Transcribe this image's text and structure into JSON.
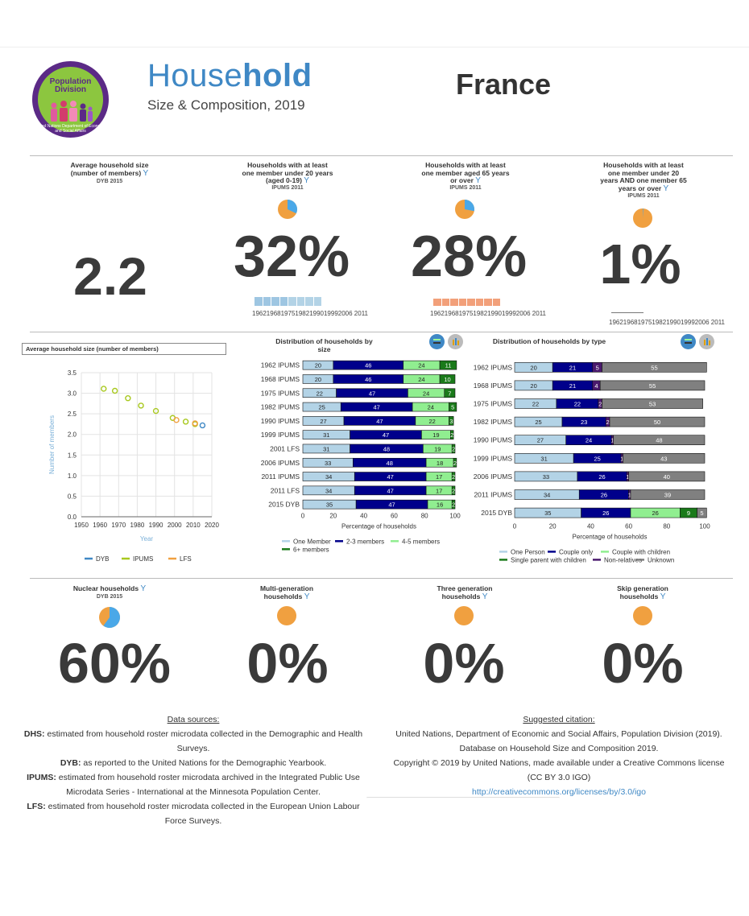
{
  "header": {
    "title_light": "House",
    "title_bold": "hold",
    "subtitle": "Size & Composition, 2019",
    "country": "France",
    "logo": {
      "line1": "Population",
      "line2": "Division",
      "ring_text": "United Nations Department of Economic and Social Affairs"
    }
  },
  "colors": {
    "blue": "#3f88c5",
    "orange": "#f0a040",
    "lightblue": "#b3d3e6",
    "navy": "#00008b",
    "lightgreen": "#90ee90",
    "darkgreen": "#1a7a1a",
    "gray": "#808080",
    "yellow_green": "#a8c81e"
  },
  "kpis": [
    {
      "label": "Average household size (number of members)",
      "source": "DYB 2015",
      "value": "2.2"
    },
    {
      "label": "Households with at least one member under 20 years (aged 0-19)",
      "source": "IPUMS 2011",
      "value": "32%",
      "pie": 0.32,
      "years": "1962196819751982199019992006 2011"
    },
    {
      "label": "Households with at least one member aged 65 years or over",
      "source": "IPUMS 2011",
      "value": "28%",
      "pie": 0.28,
      "years": "1962196819751982199019992006 2011"
    },
    {
      "label": "Households with at least one member under 20 years AND one member 65 years or over",
      "source": "IPUMS 2011",
      "value": "1%",
      "pie": 0.01,
      "years": "1962196819751982199019992006 2011"
    }
  ],
  "kpis2": [
    {
      "label": "Nuclear households",
      "source": "DYB 2015",
      "value": "60%",
      "pie": 0.6
    },
    {
      "label": "Multi-generation households",
      "value": "0%",
      "pie": 0.0
    },
    {
      "label": "Three generation households",
      "value": "0%",
      "pie": 0.0
    },
    {
      "label": "Skip generation households",
      "value": "0%",
      "pie": 0.0
    }
  ],
  "chart_data": [
    {
      "type": "scatter",
      "title": "Average household size (number of members)",
      "xlabel": "Year",
      "ylabel": "Number of members",
      "xlim": [
        1950,
        2020
      ],
      "ylim": [
        0,
        3.5
      ],
      "xticks": [
        "1950",
        "1960",
        "1970",
        "1980",
        "1990",
        "2000",
        "2010",
        "2020"
      ],
      "yticks": [
        "0.0",
        "0.5",
        "1.0",
        "1.5",
        "2.0",
        "2.5",
        "3.0",
        "3.5"
      ],
      "series": [
        {
          "name": "DYB",
          "color": "#3f88c5",
          "points": [
            [
              2015,
              2.22
            ]
          ]
        },
        {
          "name": "IPUMS",
          "color": "#a8c81e",
          "points": [
            [
              1962,
              3.11
            ],
            [
              1968,
              3.06
            ],
            [
              1975,
              2.88
            ],
            [
              1982,
              2.7
            ],
            [
              1990,
              2.57
            ],
            [
              1999,
              2.4
            ],
            [
              2006,
              2.31
            ],
            [
              2011,
              2.25
            ]
          ]
        },
        {
          "name": "LFS",
          "color": "#f0a040",
          "points": [
            [
              2001,
              2.35
            ],
            [
              2011,
              2.27
            ]
          ]
        }
      ]
    },
    {
      "type": "bar",
      "title": "Distribution of households by size",
      "xlabel": "Percentage of households",
      "xticks": [
        "0",
        "20",
        "40",
        "60",
        "80",
        "100"
      ],
      "categories": [
        "1962 IPUMS",
        "1968 IPUMS",
        "1975 IPUMS",
        "1982 IPUMS",
        "1990 IPUMS",
        "1999 IPUMS",
        "2001 LFS",
        "2006 IPUMS",
        "2011 IPUMS",
        "2011 LFS",
        "2015 DYB"
      ],
      "series": [
        {
          "name": "One Member",
          "color": "#b3d3e6",
          "values": [
            20,
            20,
            22,
            25,
            27,
            31,
            31,
            33,
            34,
            34,
            35
          ]
        },
        {
          "name": "2-3 members",
          "color": "#00008b",
          "values": [
            46,
            46,
            47,
            47,
            47,
            47,
            48,
            48,
            47,
            47,
            47
          ]
        },
        {
          "name": "4-5 members",
          "color": "#90ee90",
          "values": [
            24,
            24,
            24,
            24,
            22,
            19,
            19,
            18,
            17,
            17,
            16
          ]
        },
        {
          "name": "6+ members",
          "color": "#1a7a1a",
          "values": [
            11,
            10,
            7,
            5,
            3,
            2,
            2,
            2,
            2,
            2,
            2
          ]
        }
      ]
    },
    {
      "type": "bar",
      "title": "Distribution of households by type",
      "xlabel": "Percentage of households",
      "xticks": [
        "0",
        "20",
        "40",
        "60",
        "80",
        "100"
      ],
      "categories": [
        "1962 IPUMS",
        "1968 IPUMS",
        "1975 IPUMS",
        "1982 IPUMS",
        "1990 IPUMS",
        "1999 IPUMS",
        "2006 IPUMS",
        "2011 IPUMS",
        "2015 DYB"
      ],
      "series": [
        {
          "name": "One Person",
          "color": "#b3d3e6",
          "values": [
            20,
            20,
            22,
            25,
            27,
            31,
            33,
            34,
            35
          ]
        },
        {
          "name": "Couple only",
          "color": "#00008b",
          "values": [
            21,
            21,
            22,
            23,
            24,
            25,
            26,
            26,
            26
          ]
        },
        {
          "name": "Couple with children",
          "color": "#90ee90",
          "values": [
            0,
            0,
            0,
            0,
            0,
            0,
            0,
            0,
            26
          ]
        },
        {
          "name": "Single parent with children",
          "color": "#1a7a1a",
          "values": [
            0,
            0,
            0,
            0,
            0,
            0,
            0,
            0,
            9
          ]
        },
        {
          "name": "Non-relatives",
          "color": "#4b1a6e",
          "values": [
            5,
            4,
            2,
            2,
            1,
            1,
            1,
            1,
            0
          ]
        },
        {
          "name": "Unknown",
          "color": "#808080",
          "values": [
            55,
            55,
            53,
            50,
            48,
            43,
            40,
            39,
            5
          ]
        }
      ]
    }
  ],
  "sources": {
    "heading": "Data sources:",
    "lines": [
      {
        "k": "DHS:",
        "t": "estimated from household roster microdata collected in the Demographic and Health Surveys."
      },
      {
        "k": "DYB:",
        "t": "as reported to the United Nations for the Demographic Yearbook."
      },
      {
        "k": "IPUMS:",
        "t": "estimated from household roster microdata archived in the Integrated Public Use Microdata Series - International at the Minnesota Population Center."
      },
      {
        "k": "LFS:",
        "t": "estimated from household roster microdata collected in the European Union Labour Force Surveys."
      }
    ]
  },
  "citation": {
    "heading": "Suggested citation:",
    "line1": "United Nations, Department of Economic and Social Affairs, Population Division (2019).",
    "line2": "Database on Household Size and Composition 2019.",
    "line3": "Copyright © 2019 by United Nations, made available under a Creative Commons license (CC BY 3.0 IGO)",
    "link": "http://creativecommons.org/licenses/by/3.0/igo"
  }
}
